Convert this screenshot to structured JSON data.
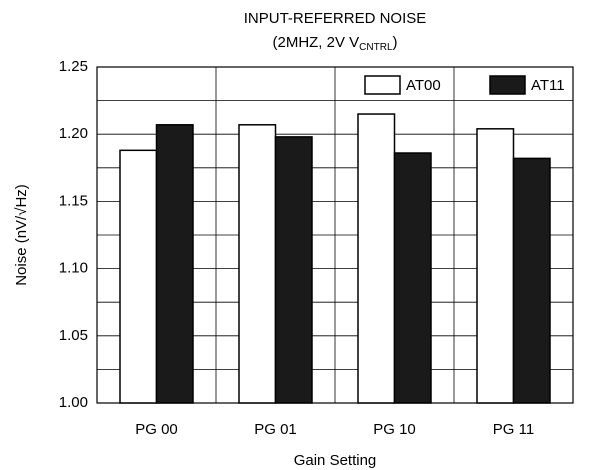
{
  "chart_data": {
    "type": "bar",
    "title": "INPUT-REFERRED NOISE",
    "subtitle": [
      "(2MHZ, 2V V",
      "CNTRL",
      ")"
    ],
    "x_label": "Gain Setting",
    "y_label": "Noise (nV/√Hz)",
    "categories": [
      "PG 00",
      "PG 01",
      "PG 10",
      "PG 11"
    ],
    "series": [
      {
        "name": "AT00",
        "color": "#ffffff",
        "values": [
          1.188,
          1.207,
          1.215,
          1.204
        ]
      },
      {
        "name": "AT11",
        "color": "#1a1a1a",
        "values": [
          1.207,
          1.198,
          1.186,
          1.182
        ]
      }
    ],
    "ylim": [
      1.0,
      1.25
    ],
    "yticks": [
      {
        "value": 1.0,
        "label": "1.00"
      },
      1.05,
      {
        "value": 1.1,
        "label": "1.10"
      },
      1.15,
      {
        "value": 1.2,
        "label": "1.20"
      },
      1.25
    ],
    "minor_yticks": [
      1.025,
      1.075,
      1.125,
      1.175,
      1.225
    ],
    "grid": true,
    "legend": "upper right"
  }
}
